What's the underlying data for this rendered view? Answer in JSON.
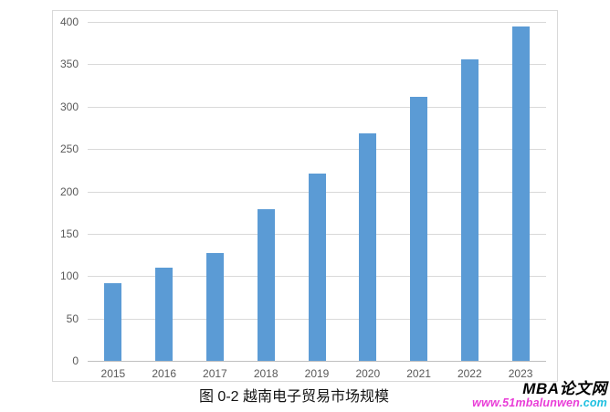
{
  "chart_data": {
    "type": "bar",
    "title": "图 0-2 越南电子贸易市场规模",
    "categories": [
      "2015",
      "2016",
      "2017",
      "2018",
      "2019",
      "2020",
      "2021",
      "2022",
      "2023"
    ],
    "values": [
      92,
      110,
      127,
      179,
      221,
      268,
      312,
      356,
      395
    ],
    "ylim": [
      0,
      400
    ],
    "yticks": [
      0,
      50,
      100,
      150,
      200,
      250,
      300,
      350,
      400
    ],
    "xlabel": "",
    "ylabel": "",
    "grid": true,
    "legend_position": "none",
    "bar_color": "#5b9bd5",
    "gridline_color": "#d9d9d9",
    "axis_line_color": "#bfbfbf",
    "tick_label_color": "#595959",
    "frame_border_color": "#d9d9d9"
  },
  "watermark": {
    "brand": "MBA论文网",
    "url_main": "www.51mbalunwen",
    "url_tld": ".com",
    "url_main_color": "#e93cd7",
    "url_tld_color": "#1fc0e0",
    "brand_color": "#000000"
  }
}
